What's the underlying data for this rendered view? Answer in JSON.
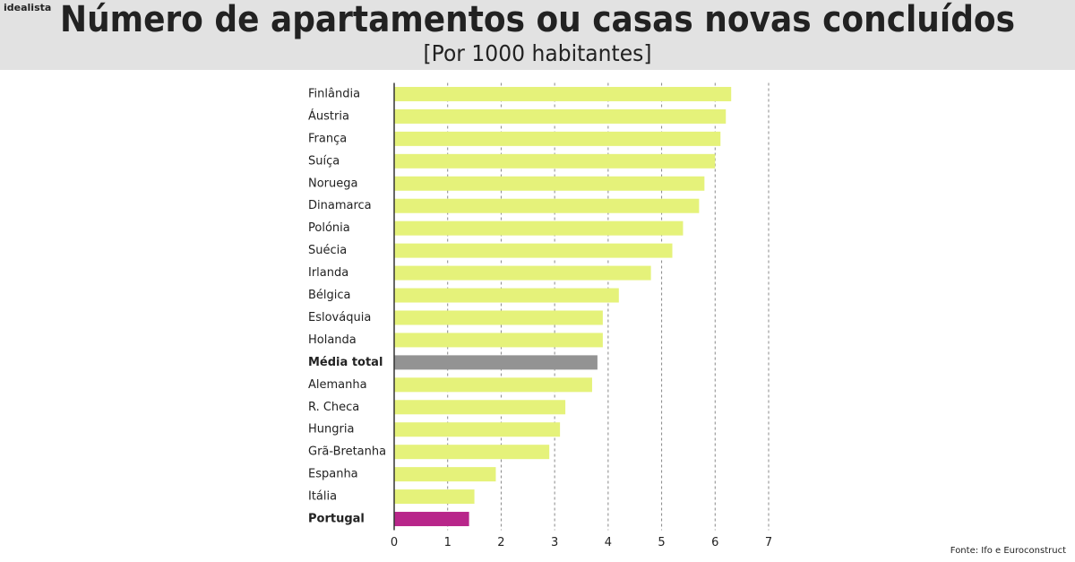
{
  "brand": "idealista",
  "chart_data": {
    "type": "bar",
    "orientation": "horizontal",
    "title": "Número de apartamentos ou casas novas concluídos",
    "subtitle": "[Por 1000 habitantes]",
    "source": "Fonte: Ifo e Euroconstruct",
    "categories": [
      "Finlândia",
      "Áustria",
      "França",
      "Suíça",
      "Noruega",
      "Dinamarca",
      "Polónia",
      "Suécia",
      "Irlanda",
      "Bélgica",
      "Eslováquia",
      "Holanda",
      "Média total",
      "Alemanha",
      "R. Checa",
      "Hungria",
      "Grã-Bretanha",
      "Espanha",
      "Itália",
      "Portugal"
    ],
    "values": [
      6.3,
      6.2,
      6.1,
      6.0,
      5.8,
      5.7,
      5.4,
      5.2,
      4.8,
      4.2,
      3.9,
      3.9,
      3.8,
      3.7,
      3.2,
      3.1,
      2.9,
      1.9,
      1.5,
      1.4
    ],
    "color": "#e5f27a",
    "colors": [
      "#e5f27a",
      "#e5f27a",
      "#e5f27a",
      "#e5f27a",
      "#e5f27a",
      "#e5f27a",
      "#e5f27a",
      "#e5f27a",
      "#e5f27a",
      "#e5f27a",
      "#e5f27a",
      "#e5f27a",
      "#939393",
      "#e5f27a",
      "#e5f27a",
      "#e5f27a",
      "#e5f27a",
      "#e5f27a",
      "#e5f27a",
      "#b8268a"
    ],
    "xlim": [
      0,
      7
    ],
    "xticks": [
      0,
      1,
      2,
      3,
      4,
      5,
      6,
      7
    ],
    "grid": true
  }
}
